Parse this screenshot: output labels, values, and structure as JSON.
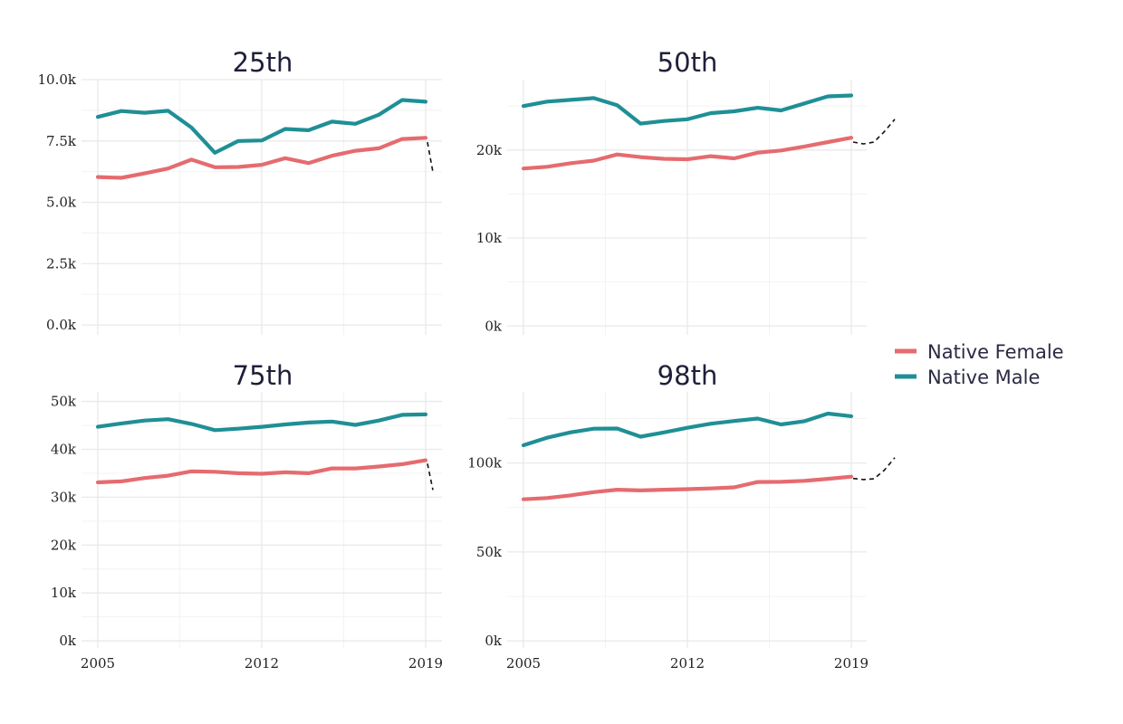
{
  "chart_data": {
    "type": "line",
    "legend": {
      "placement": "right",
      "items": [
        {
          "name": "Native Female",
          "color": "#e56b6f"
        },
        {
          "name": "Native Male",
          "color": "#1f8f96"
        }
      ]
    },
    "x_ticks": [
      "2005",
      "2012",
      "2019"
    ],
    "x": [
      2005,
      2006,
      2007,
      2008,
      2009,
      2010,
      2011,
      2012,
      2013,
      2014,
      2015,
      2016,
      2017,
      2018,
      2019
    ],
    "panels": [
      {
        "title": "25th",
        "ylim": [
          -400,
          10000
        ],
        "y_ticks": [
          {
            "value": 0,
            "label": "0.0k"
          },
          {
            "value": 2500,
            "label": "2.5k"
          },
          {
            "value": 5000,
            "label": "5.0k"
          },
          {
            "value": 7500,
            "label": "7.5k"
          },
          {
            "value": 10000,
            "label": "10.0k"
          }
        ],
        "series": [
          {
            "name": "Native Female",
            "values": [
              6030,
              6000,
              6180,
              6380,
              6740,
              6430,
              6440,
              6530,
              6800,
              6600,
              6900,
              7100,
              7200,
              7580,
              7630
            ]
          },
          {
            "name": "Native Male",
            "values": [
              8480,
              8720,
              8650,
              8730,
              8050,
              7020,
              7500,
              7520,
              7990,
              7940,
              8290,
              8200,
              8570,
              9170,
              9100
            ]
          }
        ],
        "forecast": {
          "values": [
            7450,
            6230
          ],
          "direction": "down"
        }
      },
      {
        "title": "50th",
        "ylim": [
          -1000,
          28000
        ],
        "y_ticks": [
          {
            "value": 0,
            "label": "0k"
          },
          {
            "value": 10000,
            "label": "10k"
          },
          {
            "value": 20000,
            "label": "20k"
          }
        ],
        "series": [
          {
            "name": "Native Female",
            "values": [
              17900,
              18100,
              18500,
              18800,
              19500,
              19200,
              19000,
              18950,
              19300,
              19050,
              19700,
              19950,
              20400,
              20900,
              21400
            ]
          },
          {
            "name": "Native Male",
            "values": [
              25000,
              25500,
              25700,
              25900,
              25100,
              23000,
              23300,
              23500,
              24200,
              24400,
              24800,
              24500,
              25300,
              26100,
              26200
            ]
          }
        ],
        "forecast": {
          "values": [
            20900,
            20700,
            20900,
            22100,
            23500
          ],
          "direction": "up"
        }
      },
      {
        "title": "75th",
        "ylim": [
          -1500,
          52000
        ],
        "y_ticks": [
          {
            "value": 0,
            "label": "0k"
          },
          {
            "value": 10000,
            "label": "10k"
          },
          {
            "value": 20000,
            "label": "20k"
          },
          {
            "value": 30000,
            "label": "30k"
          },
          {
            "value": 40000,
            "label": "40k"
          },
          {
            "value": 50000,
            "label": "50k"
          }
        ],
        "series": [
          {
            "name": "Native Female",
            "values": [
              33100,
              33300,
              34000,
              34500,
              35400,
              35300,
              35000,
              34900,
              35200,
              35000,
              36000,
              36000,
              36400,
              36900,
              37700
            ]
          },
          {
            "name": "Native Male",
            "values": [
              44700,
              45400,
              46000,
              46300,
              45300,
              44000,
              44300,
              44700,
              45200,
              45600,
              45800,
              45100,
              46000,
              47200,
              47300
            ]
          }
        ],
        "forecast": {
          "values": [
            37000,
            31500
          ],
          "direction": "down"
        }
      },
      {
        "title": "98th",
        "ylim": [
          -4000,
          140000
        ],
        "y_ticks": [
          {
            "value": 0,
            "label": "0k"
          },
          {
            "value": 50000,
            "label": "50k"
          },
          {
            "value": 100000,
            "label": "100k"
          }
        ],
        "series": [
          {
            "name": "Native Female",
            "values": [
              79600,
              80300,
              81800,
              83600,
              85000,
              84600,
              85000,
              85300,
              85700,
              86300,
              89300,
              89400,
              90000,
              91100,
              92300
            ]
          },
          {
            "name": "Native Male",
            "values": [
              110000,
              114200,
              117200,
              119300,
              119400,
              114800,
              117200,
              119800,
              122100,
              123600,
              125000,
              121700,
              123500,
              127800,
              126300
            ]
          }
        ],
        "forecast": {
          "values": [
            91300,
            90700,
            91100,
            96000,
            103000
          ],
          "direction": "up"
        }
      }
    ]
  }
}
